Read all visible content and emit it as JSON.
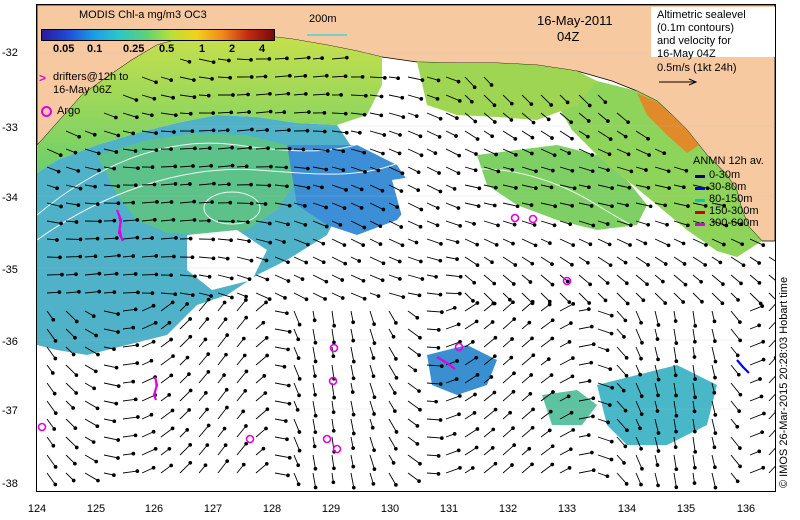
{
  "map": {
    "colorbar": {
      "title": "MODIS Chl-a mg/m3 OC3",
      "ticks": [
        "0.05",
        "0.1",
        "0.25",
        "0.5",
        "1",
        "2",
        "4"
      ],
      "colors": [
        "#2a1a9a",
        "#1f4ad8",
        "#1e9be6",
        "#2cc7c7",
        "#5cd07a",
        "#b8e03a",
        "#f2d21a",
        "#f08a1a",
        "#c22a10",
        "#7a0a0a"
      ]
    },
    "date": "16-May-2011",
    "time": "04Z",
    "contour_label": "200m",
    "drifters_label_line1": "drifters@12h to",
    "drifters_label_line2": "16-May 06Z",
    "argo_label": "Argo",
    "altimetry_line1": "Altimetric sealevel",
    "altimetry_line2": "(0.1m contours)",
    "altimetry_line3": "and velocity for",
    "altimetry_line4": "16-May 04Z",
    "scale_label": "0.5m/s (1kt 24h)",
    "anmn": {
      "title": "ANMN 12h av.",
      "items": [
        {
          "label": "0-30m",
          "color": "#000080"
        },
        {
          "label": "30-80m",
          "color": "#0000ff"
        },
        {
          "label": "80-150m",
          "color": "#00c8c8"
        },
        {
          "label": "150-300m",
          "color": "#d00000"
        },
        {
          "label": "300-600m",
          "color": "#e000e0"
        }
      ]
    },
    "y_ticks": [
      "-32",
      "-33",
      "-34",
      "-35",
      "-36",
      "-37",
      "-38"
    ],
    "x_ticks": [
      "124",
      "125",
      "126",
      "127",
      "128",
      "129",
      "130",
      "131",
      "132",
      "133",
      "134",
      "135",
      "136"
    ],
    "credit": "© IMOS 26-Mar-2015 20:28:03 Hobart time",
    "land_color": "#f7c9a1",
    "argo_color": "#e000e0"
  }
}
